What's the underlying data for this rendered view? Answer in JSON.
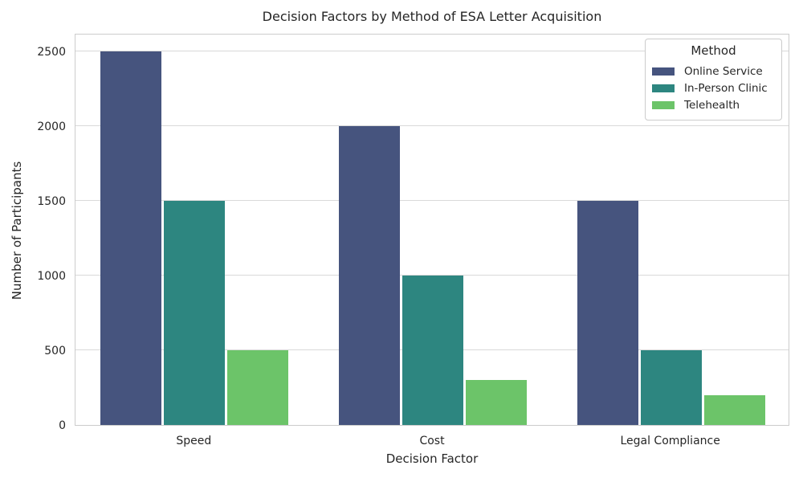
{
  "chart_data": {
    "type": "bar",
    "title": "Decision Factors by Method of ESA Letter Acquisition",
    "xlabel": "Decision Factor",
    "ylabel": "Number of Participants",
    "categories": [
      "Speed",
      "Cost",
      "Legal Compliance"
    ],
    "series": [
      {
        "name": "Online Service",
        "color": "#46547E",
        "values": [
          2500,
          2000,
          1500
        ]
      },
      {
        "name": "In-Person Clinic",
        "color": "#2D8680",
        "values": [
          1500,
          1000,
          500
        ]
      },
      {
        "name": "Telehealth",
        "color": "#6CC469",
        "values": [
          500,
          300,
          200
        ]
      }
    ],
    "legend_title": "Method",
    "legend_position": "upper right",
    "yticks": [
      0,
      500,
      1000,
      1500,
      2000,
      2500
    ],
    "ylim": [
      0,
      2625
    ],
    "grid": true,
    "group_width_fraction": 0.8
  },
  "style": {
    "grid_color": "#d9d9d9",
    "spine_color": "#cccccc",
    "text_color": "#262626",
    "background": "#ffffff"
  }
}
